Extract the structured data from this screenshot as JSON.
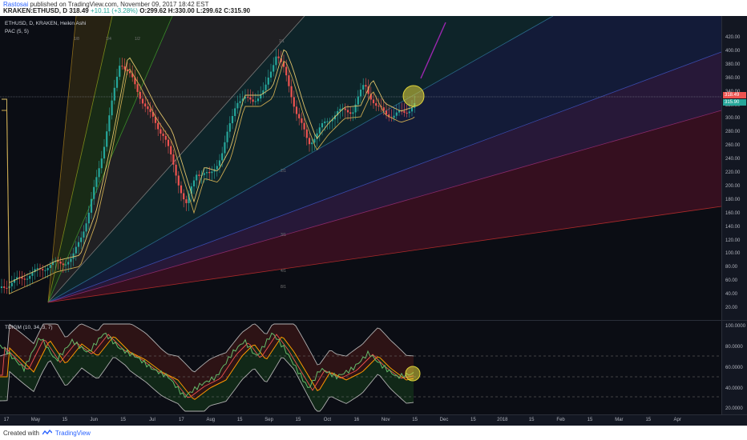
{
  "header": {
    "author": "Rastosai",
    "published": "published on TradingView.com, November 09, 2017 18:42 EST",
    "symbol": "KRAKEN:ETHUSD",
    "interval": "D",
    "last": "318.49",
    "change": "+10.11 (+3.28%)",
    "open": "O:299.62",
    "high": "H:330.00",
    "low": "L:299.62",
    "close": "C:315.90"
  },
  "legend": {
    "main": "ETHUSD, D, KRAKEN, Heikin Ashi",
    "pac": "PAC (5, 5)",
    "osc": "TDIGM (10, 34, 3, 7)"
  },
  "price_axis": [
    "420.00",
    "400.00",
    "380.00",
    "360.00",
    "340.00",
    "320.00",
    "300.00",
    "280.00",
    "260.00",
    "240.00",
    "220.00",
    "200.00",
    "180.00",
    "160.00",
    "140.00",
    "120.00",
    "100.00",
    "80.00",
    "60.00",
    "40.00",
    "20.00"
  ],
  "price_badges": {
    "last": "318.49",
    "close": "315.90"
  },
  "osc_axis": [
    "100.0000",
    "80.0000",
    "60.0000",
    "40.0000",
    "20.0000"
  ],
  "time_axis": [
    "17",
    "May",
    "15",
    "Jun",
    "15",
    "Jul",
    "17",
    "Aug",
    "15",
    "Sep",
    "15",
    "Oct",
    "16",
    "Nov",
    "15",
    "Dec",
    "15",
    "2018",
    "15",
    "Feb",
    "15",
    "Mar",
    "15",
    "Apr"
  ],
  "fan_labels": [
    "1/8",
    "1/4",
    "1/2",
    "1/1",
    "2/1",
    "3/1",
    "4/1",
    "8/1"
  ],
  "footer": {
    "created": "Created with",
    "brand": "TradingView"
  },
  "colors": {
    "up": "#26a69a",
    "down": "#ef5350",
    "pac": "#e0c36a",
    "highlight": "#e0d43a",
    "arrow": "#9c27b0"
  }
}
